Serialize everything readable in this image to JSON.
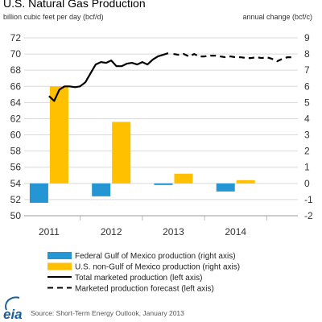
{
  "chart_data": {
    "type": "bar",
    "title": "U.S. Natural Gas Production",
    "left_axis_label": "billion cubic feet per day (bcf/d)",
    "right_axis_label": "annual change (bcf/c)",
    "left_ylim": [
      50,
      72
    ],
    "left_ticks": [
      "50",
      "52",
      "54",
      "56",
      "58",
      "60",
      "62",
      "64",
      "66",
      "68",
      "70",
      "72"
    ],
    "right_ylim": [
      -2,
      9
    ],
    "right_ticks": [
      "-2",
      "-1",
      "0",
      "1",
      "2",
      "3",
      "4",
      "5",
      "6",
      "7",
      "8",
      "9"
    ],
    "categories": [
      "2011",
      "2012",
      "2013",
      "2014"
    ],
    "grid": true,
    "bar_series": [
      {
        "name": "Federal Gulf of Mexico production (right axis)",
        "color": "#2596d4",
        "values": [
          -1.2,
          -0.8,
          -0.1,
          -0.5
        ]
      },
      {
        "name": "U.S. non-Gulf of Mexico production (right axis)",
        "color": "#ffc000",
        "values": [
          6.0,
          3.8,
          0.6,
          0.2
        ]
      }
    ],
    "line_series": [
      {
        "name": "Total marketed  production (left axis)",
        "style": "solid",
        "color": "#000000",
        "x": [
          2011.0,
          2011.083,
          2011.167,
          2011.25,
          2011.333,
          2011.417,
          2011.5,
          2011.583,
          2011.667,
          2011.75,
          2011.833,
          2011.917,
          2012.0,
          2012.083,
          2012.167,
          2012.25,
          2012.333,
          2012.417,
          2012.5,
          2012.583,
          2012.667,
          2012.75,
          2012.833,
          2012.917
        ],
        "values": [
          64.8,
          64.2,
          65.6,
          66.0,
          66.0,
          65.9,
          66.0,
          66.5,
          67.6,
          68.7,
          69.0,
          68.9,
          69.2,
          68.5,
          68.5,
          68.8,
          68.9,
          68.7,
          69.0,
          68.7,
          69.3,
          69.7,
          69.9,
          70.1
        ]
      },
      {
        "name": "Marketed production forecast (left axis)",
        "style": "dashed",
        "color": "#000000",
        "x": [
          2013.0,
          2013.083,
          2013.167,
          2013.25,
          2013.333,
          2013.417,
          2013.5,
          2013.583,
          2013.667,
          2013.75,
          2013.833,
          2013.917,
          2014.0,
          2014.083,
          2014.167,
          2014.25,
          2014.333,
          2014.417,
          2014.5,
          2014.583,
          2014.667,
          2014.75,
          2014.833,
          2014.917
        ],
        "values": [
          70.0,
          69.9,
          70.0,
          69.7,
          70.0,
          69.7,
          69.7,
          69.8,
          69.8,
          69.7,
          69.6,
          69.7,
          69.6,
          69.6,
          69.5,
          69.5,
          69.6,
          69.5,
          69.6,
          69.4,
          69.1,
          69.4,
          69.6,
          69.6
        ]
      }
    ],
    "source": "Source: Short-Term Energy Outlook, January 2013"
  },
  "logo_text": "eia"
}
